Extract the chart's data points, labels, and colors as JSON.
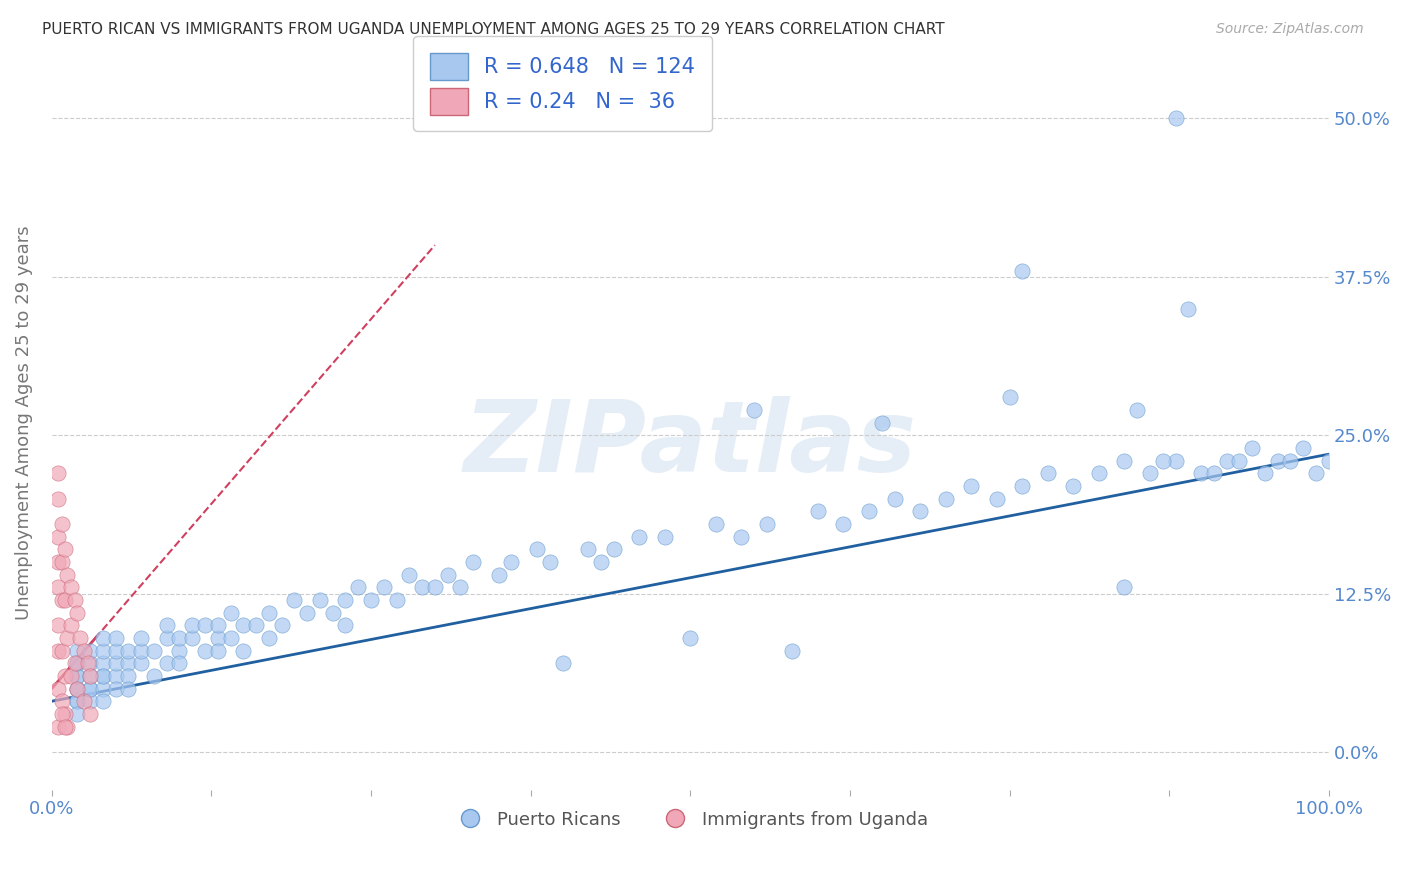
{
  "title": "PUERTO RICAN VS IMMIGRANTS FROM UGANDA UNEMPLOYMENT AMONG AGES 25 TO 29 YEARS CORRELATION CHART",
  "source": "Source: ZipAtlas.com",
  "xlabel_bottom_left": "0.0%",
  "xlabel_bottom_right": "100.0%",
  "ylabel": "Unemployment Among Ages 25 to 29 years",
  "ytick_labels": [
    "0.0%",
    "12.5%",
    "25.0%",
    "37.5%",
    "50.0%"
  ],
  "ytick_values": [
    0.0,
    0.125,
    0.25,
    0.375,
    0.5
  ],
  "xlim": [
    0.0,
    1.0
  ],
  "ylim": [
    -0.03,
    0.55
  ],
  "blue_R": 0.648,
  "blue_N": 124,
  "pink_R": 0.24,
  "pink_N": 36,
  "blue_color": "#a8c8f0",
  "pink_color": "#f0a8b8",
  "blue_line_color": "#2060a0",
  "pink_line_color": "#d04060",
  "title_color": "#333333",
  "source_color": "#aaaaaa",
  "legend_R_N_color": "#3366cc",
  "watermark": "ZIPatlas",
  "background_color": "#ffffff",
  "grid_color": "#cccccc",
  "blue_scatter_x": [
    0.02,
    0.02,
    0.02,
    0.02,
    0.02,
    0.02,
    0.02,
    0.02,
    0.02,
    0.02,
    0.03,
    0.03,
    0.03,
    0.03,
    0.03,
    0.03,
    0.04,
    0.04,
    0.04,
    0.04,
    0.04,
    0.04,
    0.04,
    0.05,
    0.05,
    0.05,
    0.05,
    0.05,
    0.06,
    0.06,
    0.06,
    0.06,
    0.07,
    0.07,
    0.07,
    0.08,
    0.08,
    0.09,
    0.09,
    0.09,
    0.1,
    0.1,
    0.1,
    0.11,
    0.11,
    0.12,
    0.12,
    0.13,
    0.13,
    0.13,
    0.14,
    0.14,
    0.15,
    0.15,
    0.16,
    0.17,
    0.17,
    0.18,
    0.19,
    0.2,
    0.21,
    0.22,
    0.23,
    0.23,
    0.24,
    0.25,
    0.26,
    0.27,
    0.28,
    0.29,
    0.3,
    0.31,
    0.32,
    0.33,
    0.35,
    0.36,
    0.38,
    0.39,
    0.4,
    0.42,
    0.43,
    0.44,
    0.46,
    0.48,
    0.5,
    0.52,
    0.54,
    0.56,
    0.58,
    0.6,
    0.62,
    0.64,
    0.66,
    0.68,
    0.7,
    0.72,
    0.74,
    0.76,
    0.78,
    0.8,
    0.82,
    0.84,
    0.86,
    0.88,
    0.9,
    0.92,
    0.94,
    0.96,
    0.98,
    1.0,
    0.55,
    0.65,
    0.75,
    0.85,
    0.87,
    0.91,
    0.93,
    0.95,
    0.97,
    0.99,
    0.88,
    0.76,
    0.89,
    0.84
  ],
  "blue_scatter_y": [
    0.04,
    0.05,
    0.06,
    0.07,
    0.08,
    0.04,
    0.05,
    0.06,
    0.03,
    0.07,
    0.05,
    0.06,
    0.07,
    0.04,
    0.08,
    0.05,
    0.06,
    0.07,
    0.08,
    0.05,
    0.04,
    0.06,
    0.09,
    0.06,
    0.07,
    0.08,
    0.05,
    0.09,
    0.07,
    0.08,
    0.06,
    0.05,
    0.07,
    0.08,
    0.09,
    0.08,
    0.06,
    0.07,
    0.09,
    0.1,
    0.08,
    0.09,
    0.07,
    0.09,
    0.1,
    0.08,
    0.1,
    0.09,
    0.1,
    0.08,
    0.09,
    0.11,
    0.1,
    0.08,
    0.1,
    0.11,
    0.09,
    0.1,
    0.12,
    0.11,
    0.12,
    0.11,
    0.12,
    0.1,
    0.13,
    0.12,
    0.13,
    0.12,
    0.14,
    0.13,
    0.13,
    0.14,
    0.13,
    0.15,
    0.14,
    0.15,
    0.16,
    0.15,
    0.07,
    0.16,
    0.15,
    0.16,
    0.17,
    0.17,
    0.09,
    0.18,
    0.17,
    0.18,
    0.08,
    0.19,
    0.18,
    0.19,
    0.2,
    0.19,
    0.2,
    0.21,
    0.2,
    0.21,
    0.22,
    0.21,
    0.22,
    0.23,
    0.22,
    0.23,
    0.22,
    0.23,
    0.24,
    0.23,
    0.24,
    0.23,
    0.27,
    0.26,
    0.28,
    0.27,
    0.23,
    0.22,
    0.23,
    0.22,
    0.23,
    0.22,
    0.5,
    0.38,
    0.35,
    0.13
  ],
  "pink_scatter_x": [
    0.005,
    0.005,
    0.005,
    0.005,
    0.005,
    0.005,
    0.005,
    0.008,
    0.008,
    0.008,
    0.008,
    0.01,
    0.01,
    0.01,
    0.012,
    0.012,
    0.015,
    0.015,
    0.015,
    0.018,
    0.018,
    0.02,
    0.02,
    0.022,
    0.025,
    0.025,
    0.028,
    0.03,
    0.03,
    0.005,
    0.008,
    0.01,
    0.012,
    0.005,
    0.008,
    0.01
  ],
  "pink_scatter_y": [
    0.2,
    0.17,
    0.15,
    0.13,
    0.1,
    0.08,
    0.05,
    0.18,
    0.15,
    0.12,
    0.08,
    0.16,
    0.12,
    0.06,
    0.14,
    0.09,
    0.13,
    0.1,
    0.06,
    0.12,
    0.07,
    0.11,
    0.05,
    0.09,
    0.08,
    0.04,
    0.07,
    0.06,
    0.03,
    0.02,
    0.04,
    0.03,
    0.02,
    0.22,
    0.03,
    0.02
  ],
  "blue_line_x0": 0.0,
  "blue_line_y0": 0.04,
  "blue_line_x1": 1.0,
  "blue_line_y1": 0.235,
  "pink_line_x0": 0.0,
  "pink_line_y0": 0.05,
  "pink_line_x1": 0.3,
  "pink_line_y1": 0.4
}
